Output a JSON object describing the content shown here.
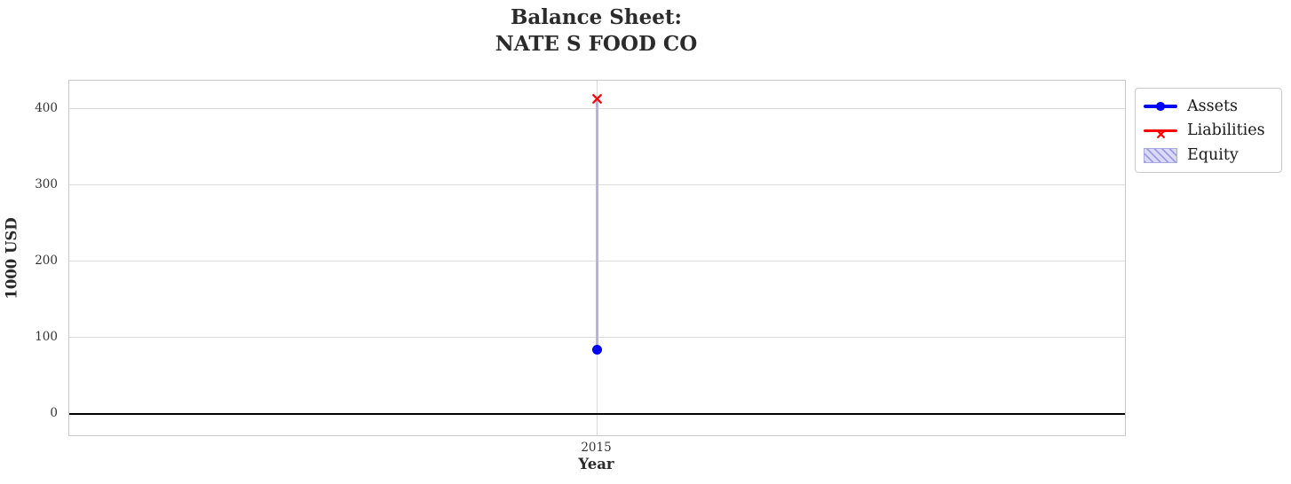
{
  "chart_data": {
    "type": "mixed-line-bar",
    "title": "Balance Sheet:\nNATE S FOOD CO",
    "xlabel": "Year",
    "ylabel": "1000 USD",
    "x": [
      2015
    ],
    "series": [
      {
        "name": "Assets",
        "type": "line",
        "marker": "circle",
        "color": "#0000ff",
        "values": [
          84
        ]
      },
      {
        "name": "Liabilities",
        "type": "line",
        "marker": "x",
        "color": "#ff0000",
        "values": [
          415
        ]
      },
      {
        "name": "Equity",
        "type": "bar",
        "color": "#b7b4dc",
        "hatch": "///",
        "legend_fill": "#dadaf8",
        "legend_hatch": "#9b9be0",
        "legend_border": "#a9a9e2",
        "values": [
          -331
        ],
        "bar_bottom": [
          415
        ]
      }
    ],
    "ylim": [
      -28,
      437
    ],
    "yticks": [
      400,
      300,
      200,
      100,
      0
    ],
    "zero_line": true,
    "grid": true,
    "legend_position": "outside upper right"
  }
}
